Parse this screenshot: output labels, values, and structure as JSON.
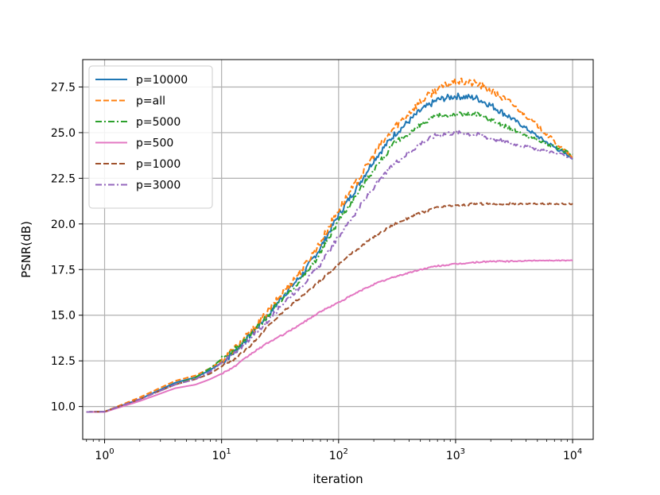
{
  "chart_data": {
    "type": "line",
    "xlabel": "iteration",
    "ylabel": "PSNR(dB)",
    "xscale": "log",
    "xlim": [
      0.65,
      15000
    ],
    "ylim": [
      8.2,
      29.0
    ],
    "x_ticks": [
      {
        "value": 1,
        "base": "10",
        "exp": "0"
      },
      {
        "value": 10,
        "base": "10",
        "exp": "1"
      },
      {
        "value": 100,
        "base": "10",
        "exp": "2"
      },
      {
        "value": 1000,
        "base": "10",
        "exp": "3"
      },
      {
        "value": 10000,
        "base": "10",
        "exp": "4"
      }
    ],
    "y_ticks": [
      {
        "value": 10.0,
        "label": "10.0"
      },
      {
        "value": 12.5,
        "label": "12.5"
      },
      {
        "value": 15.0,
        "label": "15.0"
      },
      {
        "value": 17.5,
        "label": "17.5"
      },
      {
        "value": 20.0,
        "label": "20.0"
      },
      {
        "value": 22.5,
        "label": "22.5"
      },
      {
        "value": 25.0,
        "label": "25.0"
      },
      {
        "value": 27.5,
        "label": "27.5"
      }
    ],
    "grid": true,
    "legend_position": "top-left",
    "series": [
      {
        "name": "p=10000",
        "color": "#1f77b4",
        "dash": "solid",
        "noise": 0.35,
        "x": [
          0.7,
          1,
          2,
          4,
          6,
          8,
          10,
          13,
          18,
          25,
          35,
          50,
          70,
          100,
          150,
          200,
          300,
          500,
          700,
          1000,
          1500,
          2000,
          3000,
          5000,
          7000,
          10000
        ],
        "y": [
          9.7,
          9.72,
          10.4,
          11.3,
          11.6,
          12.0,
          12.4,
          13.0,
          14.0,
          15.0,
          16.2,
          17.3,
          18.7,
          20.5,
          22.2,
          23.5,
          24.9,
          26.2,
          26.8,
          27.0,
          26.9,
          26.5,
          25.8,
          24.8,
          24.2,
          23.6
        ]
      },
      {
        "name": "p=all",
        "color": "#ff7f0e",
        "dash": "dashed",
        "noise": 0.4,
        "x": [
          0.7,
          1,
          2,
          4,
          6,
          8,
          10,
          13,
          18,
          25,
          35,
          50,
          70,
          100,
          150,
          200,
          300,
          500,
          700,
          1000,
          1500,
          2000,
          3000,
          5000,
          7000,
          10000
        ],
        "y": [
          9.7,
          9.72,
          10.5,
          11.4,
          11.7,
          12.1,
          12.5,
          13.2,
          14.1,
          15.2,
          16.4,
          17.6,
          19.0,
          20.8,
          22.5,
          23.8,
          25.3,
          26.7,
          27.4,
          27.8,
          27.7,
          27.3,
          26.6,
          25.4,
          24.5,
          23.6
        ]
      },
      {
        "name": "p=5000",
        "color": "#2ca02c",
        "dash": "dashdot",
        "noise": 0.3,
        "x": [
          0.7,
          1,
          2,
          4,
          6,
          8,
          10,
          13,
          18,
          25,
          35,
          50,
          70,
          100,
          150,
          200,
          300,
          500,
          700,
          1000,
          1500,
          2000,
          3000,
          5000,
          7000,
          10000
        ],
        "y": [
          9.7,
          9.72,
          10.4,
          11.2,
          11.6,
          12.1,
          12.6,
          13.1,
          14.0,
          15.0,
          16.1,
          17.1,
          18.4,
          20.2,
          21.8,
          23.0,
          24.4,
          25.4,
          25.9,
          26.0,
          26.0,
          25.7,
          25.2,
          24.6,
          24.2,
          23.8
        ]
      },
      {
        "name": "p=500",
        "color": "#e377c2",
        "dash": "solid",
        "noise": 0.08,
        "x": [
          0.7,
          1,
          2,
          4,
          6,
          8,
          10,
          13,
          18,
          25,
          35,
          50,
          70,
          100,
          150,
          200,
          300,
          500,
          700,
          1000,
          1500,
          2000,
          3000,
          5000,
          7000,
          10000
        ],
        "y": [
          9.7,
          9.7,
          10.3,
          11.0,
          11.2,
          11.5,
          11.8,
          12.2,
          12.9,
          13.5,
          14.0,
          14.6,
          15.2,
          15.7,
          16.3,
          16.7,
          17.1,
          17.5,
          17.7,
          17.8,
          17.9,
          17.95,
          17.95,
          18.0,
          18.0,
          18.0
        ]
      },
      {
        "name": "p=1000",
        "color": "#a0522d",
        "dash": "dashed",
        "noise": 0.12,
        "x": [
          0.7,
          1,
          2,
          4,
          6,
          8,
          10,
          13,
          18,
          25,
          35,
          50,
          70,
          100,
          150,
          200,
          300,
          500,
          700,
          1000,
          1500,
          2000,
          3000,
          5000,
          7000,
          10000
        ],
        "y": [
          9.7,
          9.72,
          10.4,
          11.2,
          11.5,
          11.8,
          12.2,
          12.6,
          13.4,
          14.4,
          15.3,
          16.1,
          16.9,
          17.8,
          18.7,
          19.3,
          20.0,
          20.6,
          20.9,
          21.0,
          21.1,
          21.1,
          21.1,
          21.1,
          21.1,
          21.1
        ]
      },
      {
        "name": "p=3000",
        "color": "#9467bd",
        "dash": "dashdot",
        "noise": 0.25,
        "x": [
          0.7,
          1,
          2,
          4,
          6,
          8,
          10,
          13,
          18,
          25,
          35,
          50,
          70,
          100,
          150,
          200,
          300,
          500,
          700,
          1000,
          1500,
          2000,
          3000,
          5000,
          7000,
          10000
        ],
        "y": [
          9.7,
          9.72,
          10.4,
          11.2,
          11.5,
          11.9,
          12.4,
          12.9,
          13.8,
          14.7,
          15.8,
          16.7,
          17.8,
          19.3,
          20.9,
          22.0,
          23.3,
          24.4,
          24.9,
          25.0,
          24.9,
          24.7,
          24.4,
          24.1,
          23.9,
          23.6
        ]
      }
    ]
  }
}
